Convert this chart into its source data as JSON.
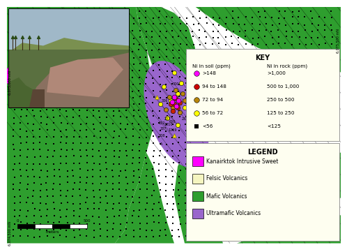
{
  "yellow_color": "#f5f5c0",
  "green_color": "#2e9e2e",
  "magenta_color": "#ff00ff",
  "purple_color": "#9966cc",
  "key_title": "KEY",
  "legend_title": "LEGEND",
  "ni_soil_label": "Ni in soil (ppm)",
  "ni_rock_label": "Ni in rock (ppm)",
  "soil_categories": [
    ">148",
    "94 to 148",
    "72 to 94",
    "56 to 72",
    "<56"
  ],
  "soil_colors": [
    "#ff00ff",
    "#cc0000",
    "#b8860b",
    "#ffff00",
    "#000000"
  ],
  "rock_categories": [
    ">1,000",
    "500 to 1,000",
    "250 to 500",
    "125 to 250",
    "<125"
  ],
  "legend_items": [
    "Kanairktok Intrusive Sweet",
    "Felsic Volcanics",
    "Mafic Volcanics",
    "Ultramafic Volcanics"
  ],
  "legend_colors": [
    "#ff00ff",
    "#f5f5c0",
    "#2e9e2e",
    "#9966cc"
  ],
  "scale_bar_label": "meters",
  "coord_left_top": "6,075,000 mN",
  "coord_left_bot": "6,074,500 mN",
  "coord_right": "6,075,500 mN",
  "photo_sky_color": "#a0b8c8",
  "photo_rock_color": "#8a7060",
  "photo_veg_color": "#5a7040",
  "photo_pink_rock": "#b08878"
}
